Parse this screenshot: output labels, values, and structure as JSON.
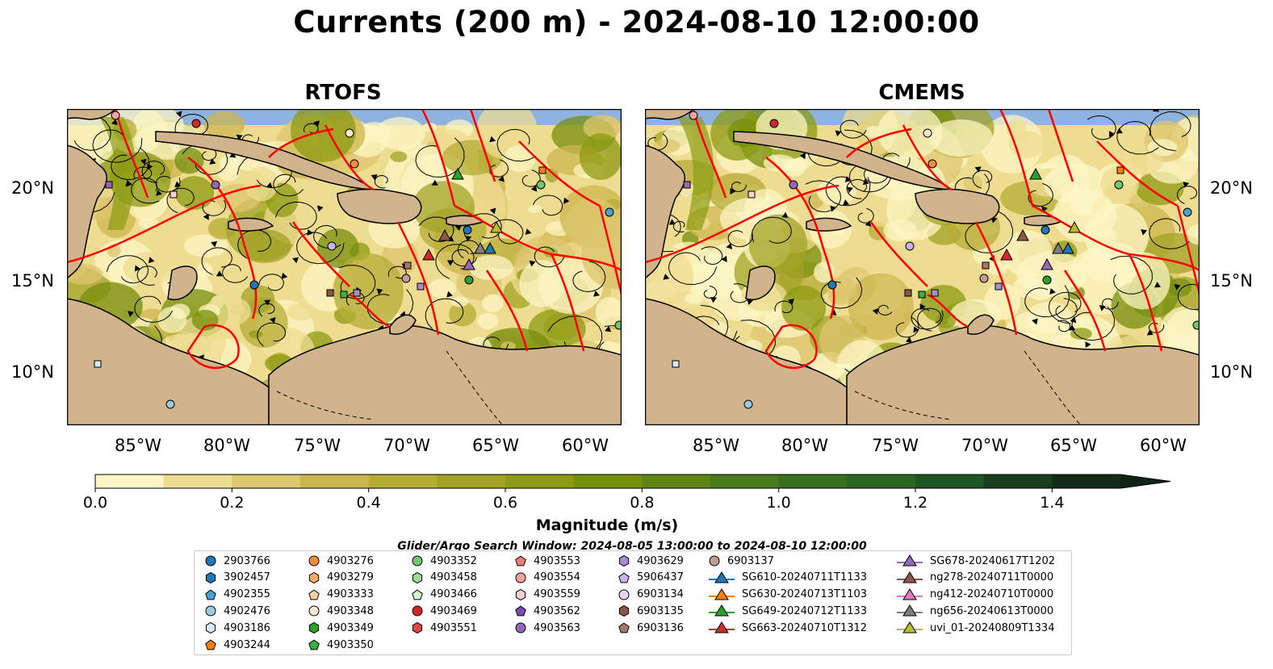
{
  "title": "Currents (200 m) - 2024-08-10 12:00:00",
  "panels": [
    {
      "title": "RTOFS"
    },
    {
      "title": "CMEMS"
    }
  ],
  "lat_labels": [
    "20°N",
    "15°N",
    "10°N"
  ],
  "lon_labels": [
    "85°W",
    "80°W",
    "75°W",
    "70°W",
    "65°W",
    "60°W"
  ],
  "colorbar": {
    "label": "Magnitude (m/s)",
    "ticks": [
      "0.0",
      "0.2",
      "0.4",
      "0.6",
      "0.8",
      "1.0",
      "1.2",
      "1.4"
    ],
    "min": 0.0,
    "max": 1.5,
    "extend": "max",
    "colors": [
      "#fcf5c4",
      "#eedc91",
      "#dcc66e",
      "#ccb54d",
      "#b6ac35",
      "#a2a325",
      "#8c9b12",
      "#768f0c",
      "#5f8516",
      "#4b7a1c",
      "#38701f",
      "#2a6522",
      "#1e5622",
      "#173f1d",
      "#122c17"
    ]
  },
  "search_window": "Glider/Argo Search Window: 2024-08-05 13:00:00 to 2024-08-10 12:00:00",
  "colors": {
    "ocean_deep": "#8fb3e0",
    "land": "#d2b48c",
    "boundary_lines": "#ff0000",
    "streamlines": "#000000"
  },
  "legend": {
    "columns": [
      [
        {
          "label": "2903766",
          "marker": "circle",
          "color": "#1f77b4"
        },
        {
          "label": "3902457",
          "marker": "hexagon",
          "color": "#1f77b4"
        },
        {
          "label": "4902355",
          "marker": "pentagon",
          "color": "#4a9fd5"
        },
        {
          "label": "4902476",
          "marker": "circle",
          "color": "#9ecae1"
        },
        {
          "label": "4903186",
          "marker": "hexagon",
          "color": "#d6e9f8"
        },
        {
          "label": "4903244",
          "marker": "pentagon",
          "color": "#ff7f0e"
        }
      ],
      [
        {
          "label": "4903276",
          "marker": "circle",
          "color": "#fd8d3c"
        },
        {
          "label": "4903279",
          "marker": "hexagon",
          "color": "#fdae6b"
        },
        {
          "label": "4903333",
          "marker": "pentagon",
          "color": "#fdd0a2"
        },
        {
          "label": "4903348",
          "marker": "circle",
          "color": "#feead0"
        },
        {
          "label": "4903349",
          "marker": "hexagon",
          "color": "#2ca02c"
        },
        {
          "label": "4903350",
          "marker": "pentagon",
          "color": "#3cb043"
        }
      ],
      [
        {
          "label": "4903352",
          "marker": "circle",
          "color": "#74c476"
        },
        {
          "label": "4903458",
          "marker": "hexagon",
          "color": "#a1d99b"
        },
        {
          "label": "4903466",
          "marker": "pentagon",
          "color": "#d6f5d0"
        },
        {
          "label": "4903469",
          "marker": "circle",
          "color": "#d62728"
        },
        {
          "label": "4903551",
          "marker": "hexagon",
          "color": "#e04848"
        }
      ],
      [
        {
          "label": "4903553",
          "marker": "pentagon",
          "color": "#f08080"
        },
        {
          "label": "4903554",
          "marker": "circle",
          "color": "#f7a1a1"
        },
        {
          "label": "4903559",
          "marker": "hexagon",
          "color": "#fcd0cf"
        },
        {
          "label": "4903562",
          "marker": "pentagon",
          "color": "#7b4fb0"
        },
        {
          "label": "4903563",
          "marker": "circle",
          "color": "#9467bd"
        }
      ],
      [
        {
          "label": "4903629",
          "marker": "hexagon",
          "color": "#a98bd6"
        },
        {
          "label": "5906437",
          "marker": "pentagon",
          "color": "#c9b3ea"
        },
        {
          "label": "6903134",
          "marker": "circle",
          "color": "#e2d5f5"
        },
        {
          "label": "6903135",
          "marker": "hexagon",
          "color": "#8c564b"
        },
        {
          "label": "6903136",
          "marker": "pentagon",
          "color": "#a9786c"
        }
      ],
      [
        {
          "label": "6903137",
          "marker": "circle",
          "color": "#c49c94"
        },
        {
          "label": "SG610-20240711T1133",
          "marker": "triangle-line",
          "color": "#1f77b4"
        },
        {
          "label": "SG630-20240713T1103",
          "marker": "triangle-line",
          "color": "#ff7f0e"
        },
        {
          "label": "SG649-20240712T1133",
          "marker": "triangle-line",
          "color": "#2ca02c"
        },
        {
          "label": "SG663-20240710T1312",
          "marker": "triangle-line",
          "color": "#d62728"
        }
      ],
      [
        {
          "label": "SG678-20240617T1202",
          "marker": "triangle-line",
          "color": "#9467bd"
        },
        {
          "label": "ng278-20240711T0000",
          "marker": "triangle-line",
          "color": "#8c564b"
        },
        {
          "label": "ng412-20240710T0000",
          "marker": "triangle-line",
          "color": "#e377c2"
        },
        {
          "label": "ng656-20240613T0000",
          "marker": "triangle-line",
          "color": "#7f7f7f"
        },
        {
          "label": "uvi_01-20240809T1334",
          "marker": "triangle-line",
          "color": "#bcbd22"
        }
      ]
    ]
  }
}
